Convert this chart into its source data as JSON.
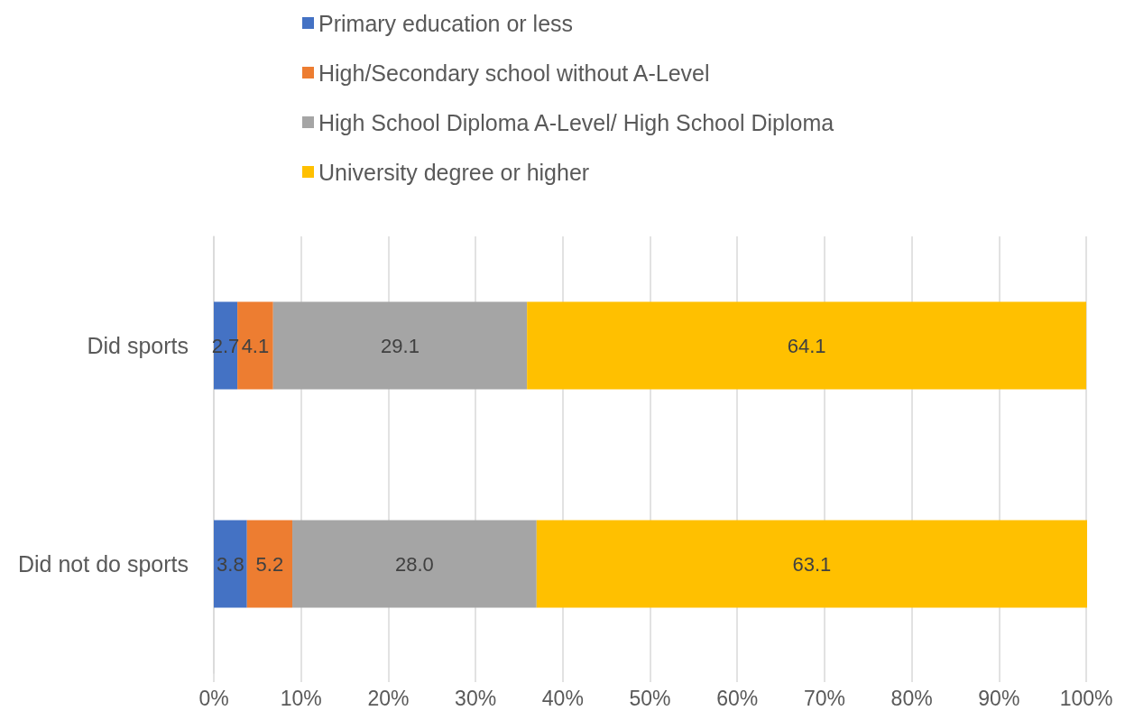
{
  "chart_data": {
    "type": "bar",
    "orientation": "horizontal",
    "stacked": true,
    "categories": [
      "Did sports",
      "Did not do sports"
    ],
    "series": [
      {
        "name": "Primary education or less",
        "color": "#4472c4",
        "values": [
          2.7,
          3.8
        ],
        "value_labels": [
          "2.7",
          "3.8"
        ]
      },
      {
        "name": "High/Secondary school without A-Level",
        "color": "#ed7d31",
        "values": [
          4.1,
          5.2
        ],
        "value_labels": [
          "4.1",
          "5.2"
        ]
      },
      {
        "name": "High School Diploma A-Level/ High School Diploma",
        "color": "#a5a5a5",
        "values": [
          29.1,
          28.0
        ],
        "value_labels": [
          "29.1",
          "28.0"
        ]
      },
      {
        "name": "University degree or higher",
        "color": "#ffc000",
        "values": [
          64.1,
          63.1
        ],
        "value_labels": [
          "64.1",
          "63.1"
        ]
      }
    ],
    "xlim": [
      0,
      100.1
    ],
    "xticks": [
      {
        "value": 0,
        "label": "0%"
      },
      {
        "value": 10,
        "label": "10%"
      },
      {
        "value": 20,
        "label": "20%"
      },
      {
        "value": 30,
        "label": "30%"
      },
      {
        "value": 40,
        "label": "40%"
      },
      {
        "value": 50,
        "label": "50%"
      },
      {
        "value": 60,
        "label": "60%"
      },
      {
        "value": 70,
        "label": "70%"
      },
      {
        "value": 80,
        "label": "80%"
      },
      {
        "value": 90,
        "label": "90%"
      },
      {
        "value": 100,
        "label": "100%"
      }
    ],
    "grid": "x",
    "legend": "top"
  }
}
